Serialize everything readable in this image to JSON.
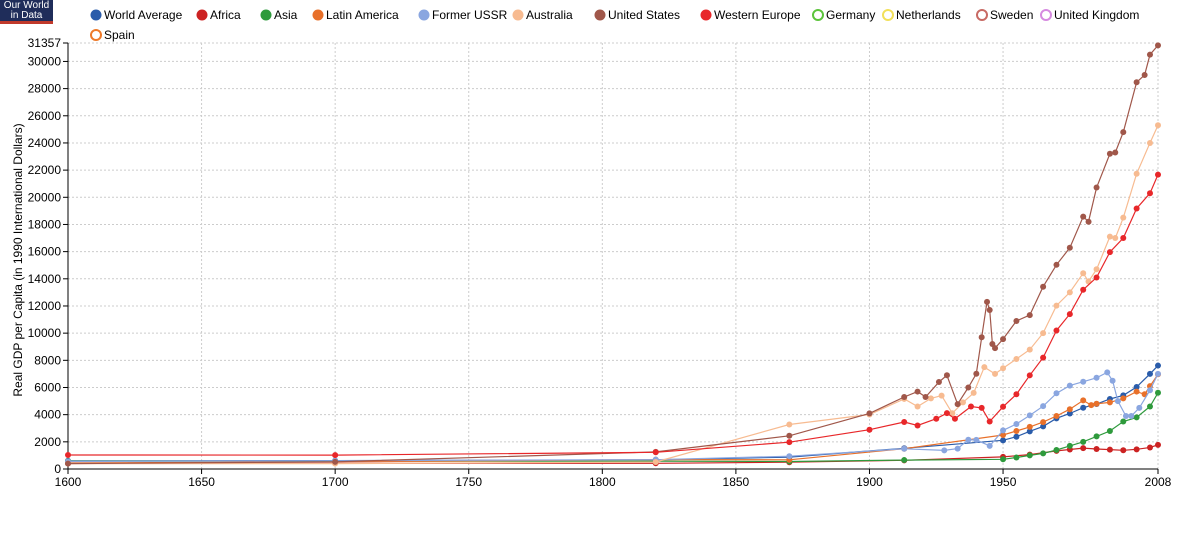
{
  "logo": {
    "line1": "Our World",
    "line2": "in Data"
  },
  "chart_data": {
    "type": "line",
    "ylabel": "Real GDP per Capita (in 1990 International Dollars)",
    "xlabel": "",
    "xlim": [
      1600,
      2008
    ],
    "ylim": [
      0,
      31357
    ],
    "x_ticks": [
      "1600",
      "1650",
      "1700",
      "1750",
      "1800",
      "1850",
      "1900",
      "1950",
      "2008"
    ],
    "y_ticks": [
      "0",
      "2000",
      "4000",
      "6000",
      "8000",
      "10000",
      "12000",
      "14000",
      "16000",
      "18000",
      "20000",
      "22000",
      "24000",
      "26000",
      "28000",
      "30000",
      "31357"
    ],
    "grid": true,
    "legend_position": "top",
    "series": [
      {
        "name": "World Average",
        "color": "#2a5caa",
        "filled": true,
        "points": [
          [
            1600,
            596
          ],
          [
            1700,
            615
          ],
          [
            1820,
            667
          ],
          [
            1870,
            873
          ],
          [
            1913,
            1526
          ],
          [
            1950,
            2111
          ],
          [
            1955,
            2376
          ],
          [
            1960,
            2772
          ],
          [
            1965,
            3133
          ],
          [
            1970,
            3729
          ],
          [
            1975,
            4084
          ],
          [
            1980,
            4512
          ],
          [
            1985,
            4786
          ],
          [
            1990,
            5150
          ],
          [
            1995,
            5417
          ],
          [
            2000,
            6037
          ],
          [
            2005,
            7000
          ],
          [
            2008,
            7614
          ]
        ]
      },
      {
        "name": "Africa",
        "color": "#cc2222",
        "filled": true,
        "points": [
          [
            1600,
            420
          ],
          [
            1700,
            421
          ],
          [
            1820,
            420
          ],
          [
            1870,
            500
          ],
          [
            1913,
            637
          ],
          [
            1950,
            889
          ],
          [
            1960,
            1060
          ],
          [
            1970,
            1335
          ],
          [
            1975,
            1438
          ],
          [
            1980,
            1536
          ],
          [
            1985,
            1469
          ],
          [
            1990,
            1425
          ],
          [
            1995,
            1379
          ],
          [
            2000,
            1447
          ],
          [
            2005,
            1586
          ],
          [
            2008,
            1780
          ]
        ]
      },
      {
        "name": "Asia",
        "color": "#2e9a3c",
        "filled": true,
        "points": [
          [
            1600,
            574
          ],
          [
            1700,
            572
          ],
          [
            1820,
            577
          ],
          [
            1870,
            550
          ],
          [
            1913,
            658
          ],
          [
            1950,
            717
          ],
          [
            1955,
            850
          ],
          [
            1960,
            1000
          ],
          [
            1965,
            1150
          ],
          [
            1970,
            1400
          ],
          [
            1975,
            1700
          ],
          [
            1980,
            2000
          ],
          [
            1985,
            2400
          ],
          [
            1990,
            2800
          ],
          [
            1995,
            3500
          ],
          [
            2000,
            3800
          ],
          [
            2005,
            4600
          ],
          [
            2008,
            5611
          ]
        ]
      },
      {
        "name": "Latin America",
        "color": "#e8702a",
        "filled": true,
        "points": [
          [
            1600,
            438
          ],
          [
            1700,
            527
          ],
          [
            1820,
            691
          ],
          [
            1870,
            676
          ],
          [
            1913,
            1494
          ],
          [
            1950,
            2503
          ],
          [
            1955,
            2800
          ],
          [
            1960,
            3100
          ],
          [
            1965,
            3450
          ],
          [
            1970,
            3900
          ],
          [
            1975,
            4400
          ],
          [
            1980,
            5050
          ],
          [
            1983,
            4700
          ],
          [
            1985,
            4800
          ],
          [
            1990,
            4900
          ],
          [
            1995,
            5200
          ],
          [
            2000,
            5700
          ],
          [
            2003,
            5500
          ],
          [
            2005,
            6100
          ],
          [
            2008,
            6973
          ]
        ]
      },
      {
        "name": "Former USSR",
        "color": "#8aa6e0",
        "filled": true,
        "points": [
          [
            1600,
            553
          ],
          [
            1700,
            611
          ],
          [
            1820,
            688
          ],
          [
            1870,
            943
          ],
          [
            1913,
            1488
          ],
          [
            1928,
            1370
          ],
          [
            1933,
            1500
          ],
          [
            1937,
            2150
          ],
          [
            1940,
            2144
          ],
          [
            1945,
            1700
          ],
          [
            1950,
            2841
          ],
          [
            1955,
            3313
          ],
          [
            1960,
            3945
          ],
          [
            1965,
            4626
          ],
          [
            1970,
            5575
          ],
          [
            1975,
            6136
          ],
          [
            1980,
            6426
          ],
          [
            1985,
            6715
          ],
          [
            1989,
            7112
          ],
          [
            1991,
            6500
          ],
          [
            1993,
            5000
          ],
          [
            1996,
            3900
          ],
          [
            1998,
            3900
          ],
          [
            2001,
            4500
          ],
          [
            2005,
            5800
          ],
          [
            2008,
            7000
          ]
        ]
      },
      {
        "name": "Australia",
        "color": "#f7bb91",
        "filled": true,
        "points": [
          [
            1600,
            400
          ],
          [
            1700,
            400
          ],
          [
            1820,
            518
          ],
          [
            1870,
            3273
          ],
          [
            1900,
            4013
          ],
          [
            1913,
            5157
          ],
          [
            1918,
            4600
          ],
          [
            1923,
            5200
          ],
          [
            1927,
            5400
          ],
          [
            1931,
            4100
          ],
          [
            1935,
            4900
          ],
          [
            1939,
            5600
          ],
          [
            1943,
            7500
          ],
          [
            1947,
            7000
          ],
          [
            1950,
            7412
          ],
          [
            1955,
            8095
          ],
          [
            1960,
            8791
          ],
          [
            1965,
            10000
          ],
          [
            1970,
            12024
          ],
          [
            1975,
            13000
          ],
          [
            1980,
            14412
          ],
          [
            1982,
            13800
          ],
          [
            1985,
            14700
          ],
          [
            1990,
            17106
          ],
          [
            1992,
            17000
          ],
          [
            1995,
            18500
          ],
          [
            2000,
            21732
          ],
          [
            2005,
            24000
          ],
          [
            2008,
            25301
          ]
        ]
      },
      {
        "name": "United States",
        "color": "#a0574a",
        "filled": true,
        "points": [
          [
            1600,
            400
          ],
          [
            1700,
            527
          ],
          [
            1820,
            1257
          ],
          [
            1870,
            2445
          ],
          [
            1900,
            4091
          ],
          [
            1913,
            5301
          ],
          [
            1918,
            5700
          ],
          [
            1921,
            5300
          ],
          [
            1926,
            6400
          ],
          [
            1929,
            6899
          ],
          [
            1933,
            4777
          ],
          [
            1937,
            6000
          ],
          [
            1940,
            7010
          ],
          [
            1942,
            9700
          ],
          [
            1944,
            12300
          ],
          [
            1945,
            11700
          ],
          [
            1946,
            9200
          ],
          [
            1947,
            8900
          ],
          [
            1950,
            9561
          ],
          [
            1955,
            10897
          ],
          [
            1960,
            11328
          ],
          [
            1965,
            13419
          ],
          [
            1970,
            15030
          ],
          [
            1975,
            16284
          ],
          [
            1980,
            18577
          ],
          [
            1982,
            18200
          ],
          [
            1985,
            20717
          ],
          [
            1990,
            23201
          ],
          [
            1992,
            23300
          ],
          [
            1995,
            24800
          ],
          [
            2000,
            28467
          ],
          [
            2003,
            29000
          ],
          [
            2005,
            30500
          ],
          [
            2008,
            31178
          ]
        ]
      },
      {
        "name": "Western Europe",
        "color": "#e8272a",
        "filled": true,
        "points": [
          [
            1600,
            1032
          ],
          [
            1700,
            1024
          ],
          [
            1820,
            1232
          ],
          [
            1870,
            1974
          ],
          [
            1900,
            2893
          ],
          [
            1913,
            3458
          ],
          [
            1918,
            3200
          ],
          [
            1925,
            3700
          ],
          [
            1929,
            4111
          ],
          [
            1932,
            3700
          ],
          [
            1938,
            4600
          ],
          [
            1942,
            4500
          ],
          [
            1945,
            3500
          ],
          [
            1950,
            4578
          ],
          [
            1955,
            5500
          ],
          [
            1960,
            6896
          ],
          [
            1965,
            8200
          ],
          [
            1970,
            10195
          ],
          [
            1975,
            11400
          ],
          [
            1980,
            13197
          ],
          [
            1985,
            14100
          ],
          [
            1990,
            15966
          ],
          [
            1995,
            17000
          ],
          [
            2000,
            19176
          ],
          [
            2005,
            20300
          ],
          [
            2008,
            21672
          ]
        ]
      },
      {
        "name": "Germany",
        "color": "#5cc43c",
        "filled": false,
        "points": []
      },
      {
        "name": "Netherlands",
        "color": "#f2e05a",
        "filled": false,
        "points": []
      },
      {
        "name": "Sweden",
        "color": "#c86a64",
        "filled": false,
        "points": []
      },
      {
        "name": "United Kingdom",
        "color": "#d68ae0",
        "filled": false,
        "points": []
      },
      {
        "name": "Spain",
        "color": "#ee7a2a",
        "filled": false,
        "points": []
      }
    ]
  }
}
